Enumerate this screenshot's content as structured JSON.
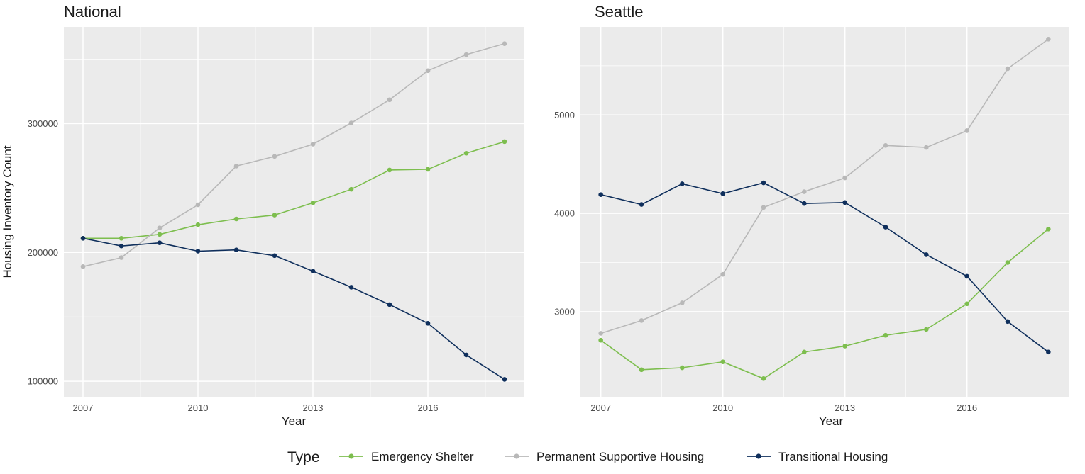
{
  "chart_data": [
    {
      "type": "line",
      "title": "National",
      "xlabel": "Year",
      "ylabel": "Housing Inventory Count",
      "x": [
        2007,
        2008,
        2009,
        2010,
        2011,
        2012,
        2013,
        2014,
        2015,
        2016,
        2017,
        2018
      ],
      "xticks": [
        2007,
        2010,
        2013,
        2016
      ],
      "yticks": [
        100000,
        200000,
        300000
      ],
      "xlim": [
        2006.5,
        2018.5
      ],
      "ylim": [
        88000,
        375000
      ],
      "grid": true,
      "series": [
        {
          "name": "Emergency Shelter",
          "values": [
            211000,
            211000,
            214000,
            221500,
            226000,
            229000,
            238500,
            249000,
            264000,
            264500,
            277000,
            286000
          ]
        },
        {
          "name": "Permanent Supportive Housing",
          "values": [
            189000,
            196000,
            219000,
            237000,
            267000,
            274500,
            284000,
            300500,
            318500,
            341000,
            353500,
            362000
          ]
        },
        {
          "name": "Transitional Housing",
          "values": [
            211000,
            205000,
            207500,
            201000,
            202000,
            197500,
            185500,
            173000,
            159500,
            145000,
            120500,
            101500
          ]
        }
      ]
    },
    {
      "type": "line",
      "title": "Seattle",
      "xlabel": "Year",
      "ylabel": "",
      "x": [
        2007,
        2008,
        2009,
        2010,
        2011,
        2012,
        2013,
        2014,
        2015,
        2016,
        2017,
        2018
      ],
      "xticks": [
        2007,
        2010,
        2013,
        2016
      ],
      "yticks": [
        3000,
        4000,
        5000
      ],
      "xlim": [
        2006.5,
        2018.5
      ],
      "ylim": [
        2135,
        5895
      ],
      "grid": true,
      "series": [
        {
          "name": "Emergency Shelter",
          "values": [
            2710,
            2410,
            2430,
            2490,
            2320,
            2590,
            2650,
            2760,
            2820,
            3080,
            3500,
            3840
          ]
        },
        {
          "name": "Permanent Supportive Housing",
          "values": [
            2780,
            2910,
            3090,
            3380,
            4060,
            4220,
            4360,
            4690,
            4670,
            4840,
            5470,
            5770
          ]
        },
        {
          "name": "Transitional Housing",
          "values": [
            4190,
            4090,
            4300,
            4200,
            4310,
            4100,
            4110,
            3860,
            3580,
            3360,
            2900,
            2590
          ]
        }
      ]
    }
  ],
  "legend": {
    "title": "Type",
    "position": "bottom",
    "items": [
      {
        "label": "Emergency Shelter",
        "color": "#7dbe4e"
      },
      {
        "label": "Permanent Supportive Housing",
        "color": "#b8b8b8"
      },
      {
        "label": "Transitional Housing",
        "color": "#0f2f5c"
      }
    ]
  },
  "colors": {
    "panel_background": "#ebebeb",
    "grid_line": "#ffffff"
  }
}
